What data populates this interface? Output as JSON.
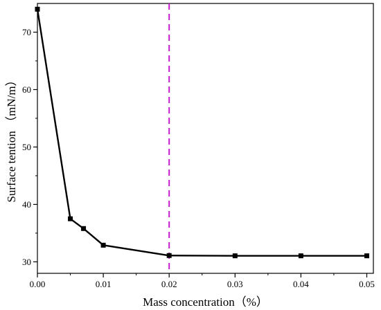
{
  "chart_data": {
    "type": "line",
    "title": "",
    "xlabel": "Mass concentration（%）",
    "ylabel": "Surface tention （mN/m）",
    "xlim": [
      0.0,
      0.051
    ],
    "ylim": [
      28,
      75
    ],
    "x_ticks": [
      0.0,
      0.01,
      0.02,
      0.03,
      0.04,
      0.05
    ],
    "x_tick_labels": [
      "0.00",
      "0.01",
      "0.02",
      "0.03",
      "0.04",
      "0.05"
    ],
    "y_ticks": [
      30,
      40,
      50,
      60,
      70
    ],
    "y_tick_labels": [
      "30",
      "40",
      "50",
      "60",
      "70"
    ],
    "grid": false,
    "series": [
      {
        "x": [
          0.0,
          0.005,
          0.007,
          0.01,
          0.02,
          0.03,
          0.04,
          0.05
        ],
        "y": [
          74.0,
          37.5,
          35.8,
          32.9,
          31.1,
          31.05,
          31.05,
          31.05
        ],
        "color": "#000000",
        "marker": "square"
      }
    ],
    "reference_lines": [
      {
        "orientation": "vertical",
        "x": 0.02,
        "style": "dashed",
        "color": "#c51bcf"
      }
    ]
  }
}
